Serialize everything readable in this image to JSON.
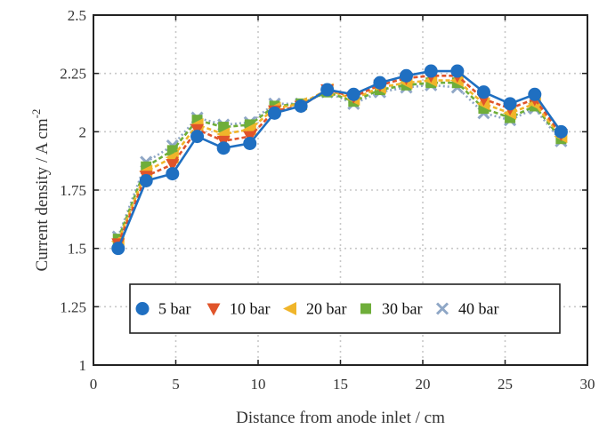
{
  "chart_data": {
    "type": "line",
    "title": "",
    "xlabel": "Distance from anode inlet / cm",
    "ylabel": "Current density / A cm",
    "ylabel_superscript": "-2",
    "xlim": [
      0,
      30
    ],
    "ylim": [
      1,
      2.5
    ],
    "xticks": [
      "0",
      "5",
      "10",
      "15",
      "20",
      "25",
      "30"
    ],
    "yticks": [
      "1",
      "1.25",
      "1.5",
      "1.75",
      "2",
      "2.25",
      "2.5"
    ],
    "grid": true,
    "legend_position": "bottom",
    "x": [
      1.5,
      3.2,
      4.8,
      6.3,
      7.9,
      9.5,
      11.0,
      12.6,
      14.2,
      15.8,
      17.4,
      19.0,
      20.5,
      22.1,
      23.7,
      25.3,
      26.8,
      28.4
    ],
    "series": [
      {
        "name": "5 bar",
        "color": "#1f6fc1",
        "marker": "circle",
        "values": [
          1.5,
          1.79,
          1.82,
          1.98,
          1.93,
          1.95,
          2.08,
          2.11,
          2.18,
          2.16,
          2.21,
          2.24,
          2.26,
          2.26,
          2.17,
          2.12,
          2.16,
          2.0
        ]
      },
      {
        "name": "10 bar",
        "color": "#e0542a",
        "marker": "triangle-down",
        "values": [
          1.52,
          1.81,
          1.86,
          2.01,
          1.96,
          1.98,
          2.09,
          2.11,
          2.18,
          2.15,
          2.2,
          2.23,
          2.24,
          2.24,
          2.14,
          2.1,
          2.14,
          1.99
        ]
      },
      {
        "name": "20 bar",
        "color": "#f0b52a",
        "marker": "triangle-left",
        "values": [
          1.53,
          1.83,
          1.89,
          2.03,
          1.99,
          2.01,
          2.1,
          2.12,
          2.18,
          2.14,
          2.19,
          2.21,
          2.22,
          2.22,
          2.12,
          2.08,
          2.12,
          1.98
        ]
      },
      {
        "name": "30 bar",
        "color": "#6fae3a",
        "marker": "square",
        "values": [
          1.54,
          1.85,
          1.92,
          2.05,
          2.02,
          2.03,
          2.11,
          2.12,
          2.17,
          2.13,
          2.18,
          2.2,
          2.21,
          2.21,
          2.1,
          2.06,
          2.11,
          1.97
        ]
      },
      {
        "name": "40 bar",
        "color": "#8fa7c6",
        "marker": "x",
        "values": [
          1.55,
          1.87,
          1.94,
          2.06,
          2.03,
          2.04,
          2.12,
          2.12,
          2.17,
          2.12,
          2.17,
          2.19,
          2.2,
          2.19,
          2.08,
          2.05,
          2.1,
          1.96
        ]
      }
    ]
  }
}
